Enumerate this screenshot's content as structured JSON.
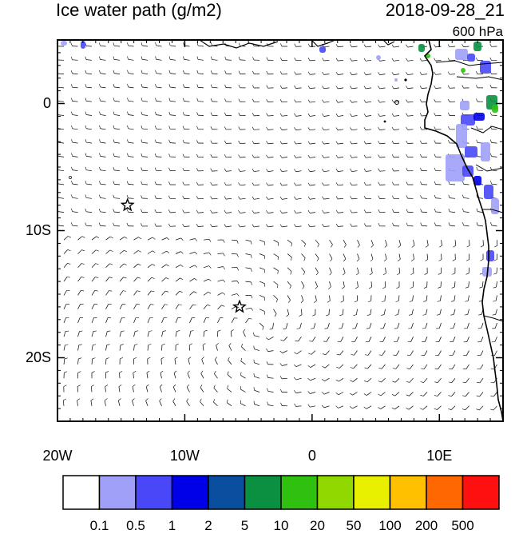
{
  "header": {
    "title": "Ice water path (g/m2)",
    "datetime": "2018-09-28_21",
    "level": "600 hPa"
  },
  "axes": {
    "lat_ticks": [
      {
        "label": "0",
        "lat": 0
      },
      {
        "label": "10S",
        "lat": -10
      },
      {
        "label": "20S",
        "lat": -20
      }
    ],
    "lon_ticks": [
      {
        "label": "20W",
        "lon": -20
      },
      {
        "label": "10W",
        "lon": -10
      },
      {
        "label": "0",
        "lon": 0
      },
      {
        "label": "10E",
        "lon": 10
      }
    ],
    "lon_range": [
      -20,
      15
    ],
    "lat_range": [
      -25,
      5
    ]
  },
  "markers": [
    {
      "name": "star",
      "lon": -14.5,
      "lat": -8
    },
    {
      "name": "star",
      "lon": -5.7,
      "lat": -16
    }
  ],
  "colorbar": {
    "colors": [
      "#ffffff",
      "#a0a0f8",
      "#4848f8",
      "#0000e8",
      "#0a4ea0",
      "#0a9040",
      "#30c010",
      "#90d800",
      "#e8f000",
      "#ffc000",
      "#ff6800",
      "#ff1010"
    ],
    "labels": [
      "0.1",
      "0.5",
      "1",
      "2",
      "5",
      "10",
      "20",
      "50",
      "100",
      "200",
      "500"
    ]
  },
  "icons": [
    "star-icon"
  ]
}
